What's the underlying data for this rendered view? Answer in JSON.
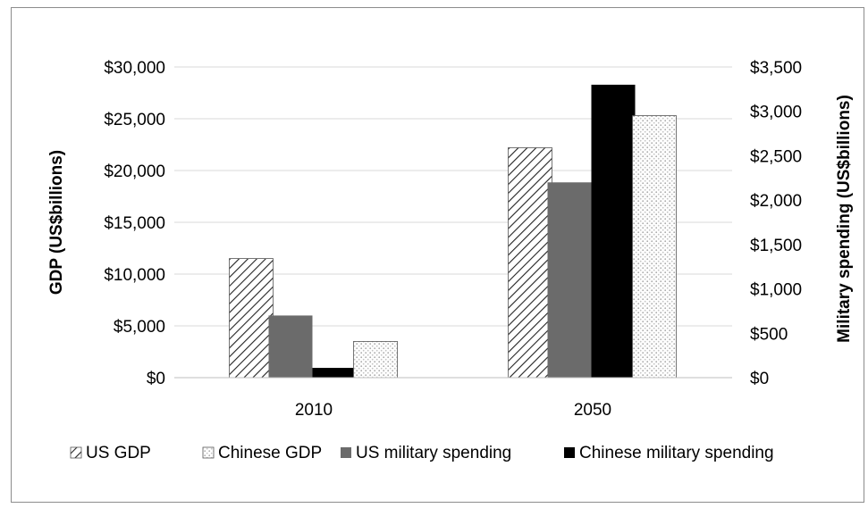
{
  "chart_data": {
    "type": "bar",
    "categories": [
      "2010",
      "2050"
    ],
    "ylabel": "GDP (US$billions)",
    "y2label": "Military spending (US$billions)",
    "ylim": [
      0,
      30000
    ],
    "y2lim": [
      0,
      3500
    ],
    "yticks": [
      "$0",
      "$5,000",
      "$10,000",
      "$15,000",
      "$20,000",
      "$25,000",
      "$30,000"
    ],
    "y2ticks": [
      "$0",
      "$500",
      "$1,000",
      "$1,500",
      "$2,000",
      "$2,500",
      "$3,000",
      "$3,500"
    ],
    "grid": true,
    "legend_position": "bottom",
    "series": [
      {
        "name": "US GDP",
        "axis": "left",
        "pattern": "diagonal-hatch",
        "values": [
          11500,
          22200
        ]
      },
      {
        "name": "US military spending",
        "axis": "right",
        "color": "#6b6b6b",
        "values": [
          700,
          2200
        ]
      },
      {
        "name": "Chinese military spending",
        "axis": "right",
        "color": "#000000",
        "values": [
          110,
          3300
        ]
      },
      {
        "name": "Chinese GDP",
        "axis": "left",
        "pattern": "dotted-light",
        "values": [
          3500,
          25300
        ]
      }
    ],
    "legend_order": [
      "US GDP",
      "Chinese GDP",
      "US military spending",
      "Chinese military spending"
    ]
  }
}
